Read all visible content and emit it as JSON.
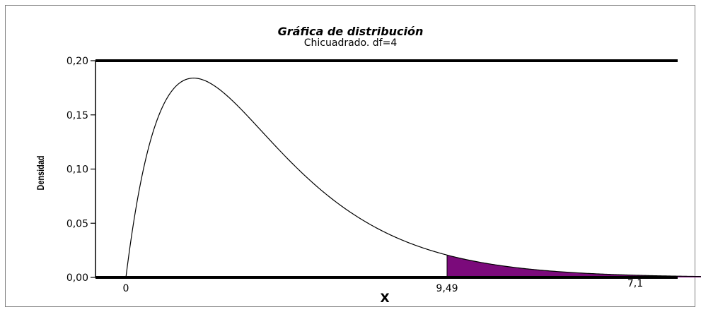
{
  "chart_data": {
    "type": "area",
    "title": "Gráfica de distribución",
    "subtitle": "Chicuadrado. df=4",
    "xlabel": "X",
    "ylabel": "Densidad",
    "distribution": "chi-square",
    "df": 4,
    "critical_value": 9.49,
    "x_tick_labels": [
      "0",
      "9,49",
      "7,1"
    ],
    "y_ticks": [
      {
        "value": 0.0,
        "label": "0,00"
      },
      {
        "value": 0.05,
        "label": "0,05"
      },
      {
        "value": 0.1,
        "label": "0,10"
      },
      {
        "value": 0.15,
        "label": "0,15"
      },
      {
        "value": 0.2,
        "label": "0,20"
      }
    ],
    "ylim": [
      0,
      0.2
    ],
    "xlim": [
      0,
      17.5
    ],
    "shaded_region": {
      "from": 9.49,
      "to": 17.5,
      "color": "#7b0a7b"
    },
    "curve_color": "#000000",
    "grid": false
  }
}
